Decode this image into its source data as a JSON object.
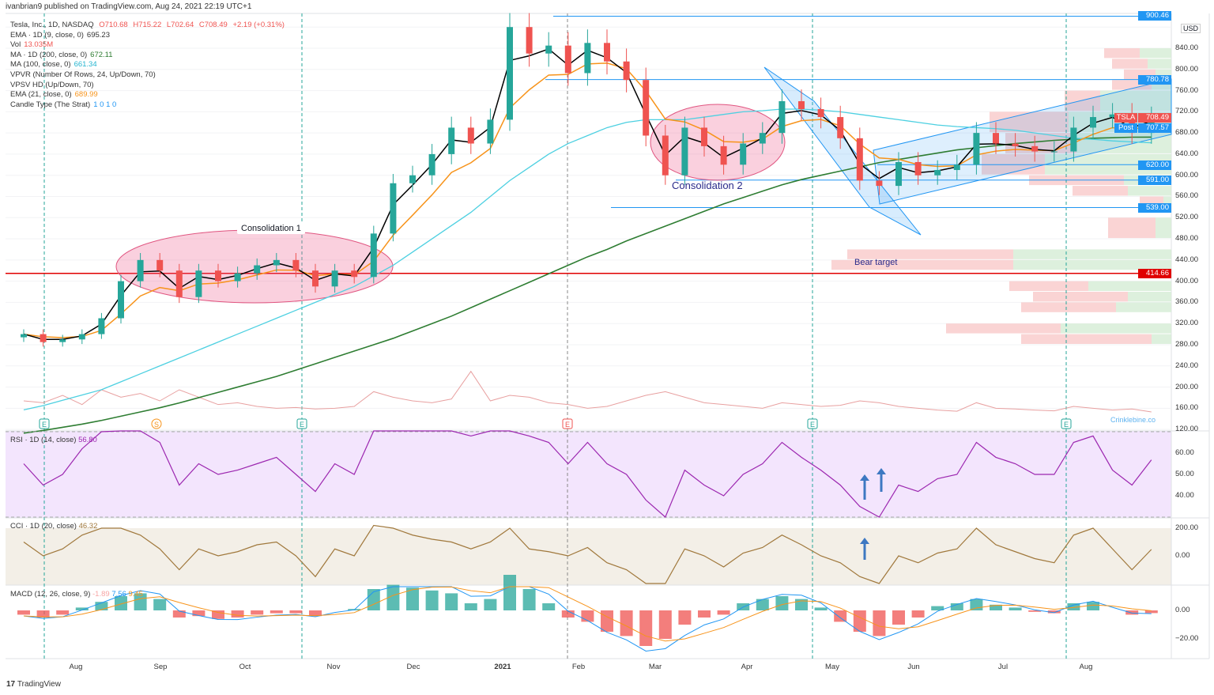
{
  "header": {
    "published": "ivanbrian9 published on TradingView.com, Aug 24, 2021 22:19 UTC+1"
  },
  "legend": {
    "symbol": "Tesla, Inc., 1D, NASDAQ",
    "o": "O710.68",
    "h": "H715.22",
    "l": "L702.64",
    "c": "C708.49",
    "chg": "+2.19 (+0.31%)",
    "ema9": "EMA · 1D (9, close, 0)",
    "ema9_v": "695.23",
    "vol": "Vol",
    "vol_v": "13.035M",
    "ma200": "MA · 1D (200, close, 0)",
    "ma200_v": "672.11",
    "ma100": "MA (100, close, 0)",
    "ma100_v": "661.34",
    "vpvr": "VPVR (Number Of Rows, 24, Up/Down, 70)",
    "vpsv": "VPSV HD (Up/Down, 70)",
    "ema21": "EMA (21, close, 0)",
    "ema21_v": "689.99",
    "strat": "Candle Type (The Strat)",
    "strat_v": "1 0 1 0"
  },
  "rsi": {
    "title": "RSI · 1D (14, close)",
    "value": "56.80"
  },
  "cci": {
    "title": "CCI · 1D (20, close)",
    "value": "46.32"
  },
  "macd": {
    "title": "MACD (12, 26, close, 9)",
    "v1": "-1.89",
    "v2": "7.56",
    "v3": "9.45"
  },
  "annotations": {
    "c1": "Consolidation 1",
    "c2": "Consolidation 2",
    "bear": "Bear target",
    "watermark": "Crinklebine.co"
  },
  "axis": {
    "currency": "USD",
    "ticks": [
      "840.00",
      "800.00",
      "760.00",
      "720.00",
      "680.00",
      "640.00",
      "600.00",
      "560.00",
      "520.00",
      "480.00",
      "440.00",
      "400.00",
      "360.00",
      "320.00",
      "280.00",
      "240.00",
      "200.00",
      "160.00",
      "120.00"
    ],
    "rsi_ticks": [
      "60.00",
      "50.00",
      "40.00"
    ],
    "cci_ticks": [
      "200.00",
      "0.00"
    ],
    "macd_ticks": [
      "0.00",
      "−20.00"
    ],
    "months": [
      "Aug",
      "Sep",
      "Oct",
      "Nov",
      "Dec",
      "2021",
      "Feb",
      "Mar",
      "Apr",
      "May",
      "Jun",
      "Jul",
      "Aug"
    ]
  },
  "tags": {
    "top": "900.46",
    "l780": "780.78",
    "tsla_label": "TSLA",
    "tsla": "708.49",
    "post_label": "Post",
    "post": "707.57",
    "l620": "620.00",
    "l591": "591.00",
    "l539": "539.00",
    "bear": "414.66"
  },
  "events": [
    "E",
    "S",
    "E",
    "E",
    "E",
    "E"
  ],
  "colors": {
    "up": "#26a69a",
    "down": "#ef5350",
    "ema9": "#000000",
    "ema21": "#f7931a",
    "ma100": "#4dd0e1",
    "ma200": "#2e7d32",
    "rsi": "#9c27b0",
    "cci": "#a0783c",
    "bear": "#e00000",
    "line": "#2196f3"
  },
  "footer": {
    "brand": "TradingView"
  },
  "chart_data": {
    "type": "candlestick",
    "title": "Tesla, Inc., 1D, NASDAQ",
    "interval": "weekly approximation",
    "start": "2020-07-13",
    "close": [
      300,
      285,
      290,
      300,
      330,
      400,
      440,
      420,
      370,
      420,
      400,
      415,
      430,
      440,
      420,
      390,
      420,
      408,
      490,
      585,
      600,
      640,
      690,
      660,
      705,
      880,
      830,
      845,
      793,
      850,
      815,
      780,
      675,
      600,
      690,
      655,
      620,
      660,
      680,
      740,
      725,
      710,
      670,
      590,
      580,
      625,
      600,
      610,
      620,
      680,
      660,
      655,
      645,
      645,
      690,
      710,
      715,
      680,
      708.49
    ],
    "ma100": [
      157,
      165,
      175,
      185,
      195,
      210,
      225,
      240,
      255,
      270,
      285,
      300,
      315,
      330,
      345,
      360,
      375,
      390,
      410,
      430,
      455,
      480,
      505,
      530,
      560,
      590,
      615,
      640,
      660,
      675,
      690,
      700,
      705,
      705,
      705,
      710,
      715,
      720,
      722,
      725,
      725,
      723,
      720,
      715,
      710,
      705,
      700,
      695,
      692,
      690,
      688,
      685,
      680,
      675,
      670,
      668,
      665,
      663,
      661.34
    ],
    "ma200": [
      113,
      118,
      124,
      130,
      137,
      145,
      153,
      161,
      170,
      180,
      190,
      200,
      210,
      220,
      232,
      244,
      256,
      268,
      280,
      292,
      306,
      320,
      334,
      350,
      366,
      382,
      398,
      414,
      430,
      446,
      460,
      476,
      490,
      504,
      518,
      532,
      546,
      558,
      570,
      582,
      592,
      600,
      608,
      616,
      624,
      630,
      636,
      642,
      648,
      652,
      656,
      660,
      663,
      666,
      668,
      670,
      671,
      672,
      672.11
    ],
    "volume": [
      60,
      55,
      75,
      50,
      90,
      70,
      80,
      60,
      90,
      70,
      50,
      55,
      45,
      40,
      42,
      38,
      40,
      45,
      85,
      70,
      60,
      55,
      65,
      140,
      60,
      75,
      70,
      55,
      50,
      40,
      45,
      60,
      75,
      85,
      70,
      55,
      50,
      45,
      40,
      55,
      50,
      45,
      48,
      60,
      55,
      45,
      40,
      35,
      32,
      55,
      40,
      38,
      35,
      33,
      45,
      40,
      35,
      38,
      30
    ],
    "rsi": [
      55,
      45,
      50,
      62,
      70,
      75,
      78,
      65,
      45,
      55,
      50,
      52,
      55,
      58,
      50,
      42,
      55,
      50,
      75,
      80,
      78,
      75,
      80,
      68,
      75,
      85,
      68,
      65,
      55,
      65,
      55,
      50,
      38,
      30,
      52,
      45,
      40,
      50,
      55,
      65,
      58,
      52,
      45,
      35,
      30,
      45,
      42,
      48,
      50,
      65,
      58,
      55,
      50,
      50,
      65,
      68,
      52,
      45,
      56.8
    ],
    "cci": [
      100,
      0,
      50,
      150,
      200,
      200,
      150,
      50,
      -100,
      50,
      0,
      30,
      80,
      100,
      0,
      -150,
      50,
      0,
      220,
      200,
      150,
      120,
      100,
      50,
      100,
      200,
      50,
      30,
      0,
      60,
      -50,
      -100,
      -200,
      -200,
      50,
      0,
      -80,
      20,
      60,
      150,
      80,
      0,
      -50,
      -150,
      -200,
      0,
      -50,
      20,
      50,
      200,
      80,
      30,
      -20,
      -50,
      150,
      200,
      50,
      -100,
      46.32
    ],
    "macd_hist": [
      -3,
      -5,
      -3,
      2,
      6,
      10,
      12,
      8,
      -5,
      -4,
      -6,
      -5,
      -3,
      -2,
      -2,
      -4,
      0,
      1,
      15,
      18,
      16,
      14,
      12,
      5,
      8,
      25,
      15,
      5,
      -5,
      -8,
      -15,
      -18,
      -25,
      -20,
      -10,
      -5,
      -3,
      5,
      8,
      10,
      8,
      2,
      -8,
      -15,
      -18,
      -10,
      -5,
      3,
      5,
      8,
      4,
      2,
      -1,
      -2,
      5,
      6,
      0,
      -3,
      -1.89
    ],
    "hlines": [
      {
        "price": 900.46,
        "color": "#2196f3"
      },
      {
        "price": 780.78,
        "color": "#2196f3"
      },
      {
        "price": 620,
        "color": "#2196f3"
      },
      {
        "price": 591,
        "color": "#2196f3"
      },
      {
        "price": 539,
        "color": "#2196f3"
      },
      {
        "price": 414.66,
        "color": "#e00000"
      }
    ],
    "volume_profile": [
      [
        820,
        840,
        40,
        45
      ],
      [
        800,
        820,
        30,
        45
      ],
      [
        780,
        800,
        20,
        40
      ],
      [
        760,
        780,
        25,
        50
      ],
      [
        720,
        760,
        90,
        45
      ],
      [
        680,
        720,
        130,
        100
      ],
      [
        640,
        680,
        120,
        90
      ],
      [
        600,
        640,
        160,
        80
      ],
      [
        580,
        600,
        60,
        120
      ],
      [
        560,
        580,
        55,
        70
      ],
      [
        540,
        560,
        10,
        30
      ],
      [
        480,
        520,
        20,
        60
      ],
      [
        440,
        460,
        200,
        210
      ],
      [
        420,
        440,
        200,
        230
      ],
      [
        380,
        400,
        105,
        100
      ],
      [
        360,
        380,
        55,
        120
      ],
      [
        340,
        360,
        70,
        120
      ],
      [
        300,
        320,
        140,
        145
      ],
      [
        280,
        300,
        25,
        165
      ]
    ],
    "ylim": [
      120,
      900
    ]
  }
}
